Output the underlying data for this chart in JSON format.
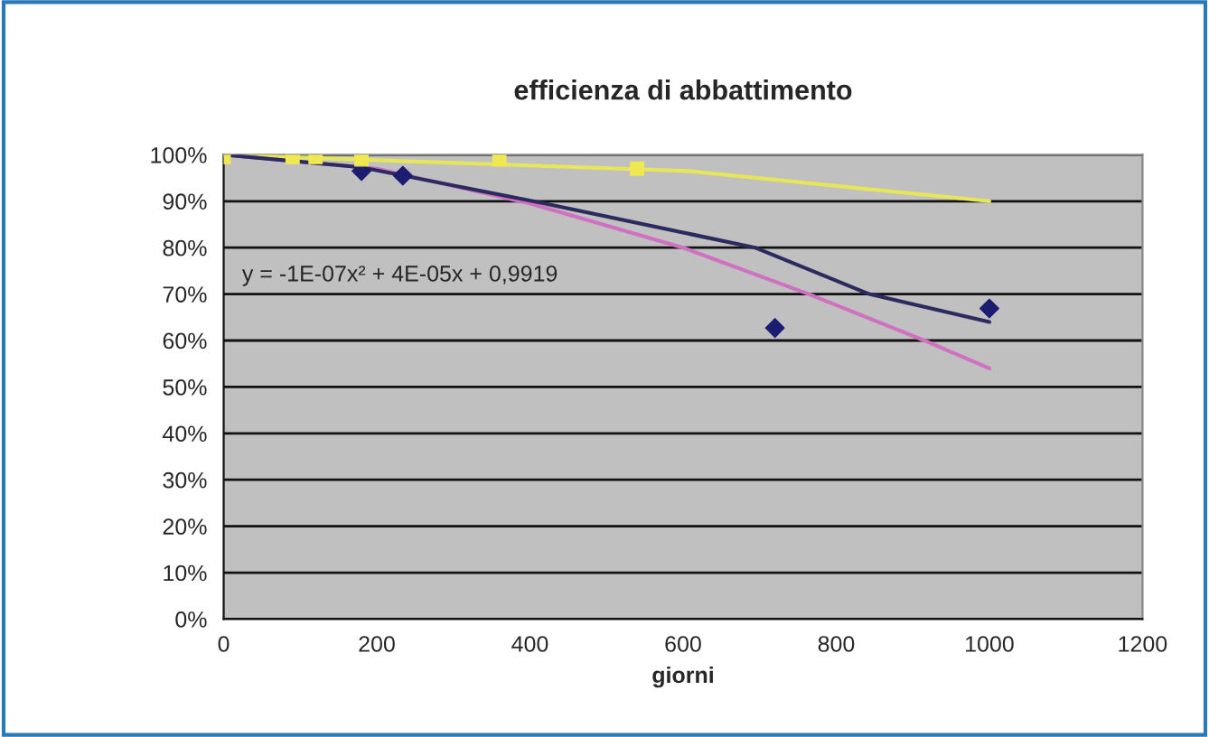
{
  "chart_data": {
    "type": "line",
    "title": "efficienza di abbattimento",
    "xlabel": "giorni",
    "xlim": [
      0,
      1200
    ],
    "xticks": [
      0,
      200,
      400,
      600,
      800,
      1000,
      1200
    ],
    "ylim": [
      0,
      100
    ],
    "yticks": [
      {
        "value": 0,
        "label": "0%"
      },
      {
        "value": 10,
        "label": "10%"
      },
      {
        "value": 20,
        "label": "20%"
      },
      {
        "value": 30,
        "label": "30%"
      },
      {
        "value": 40,
        "label": "40%"
      },
      {
        "value": 50,
        "label": "50%"
      },
      {
        "value": 60,
        "label": "60%"
      },
      {
        "value": 70,
        "label": "70%"
      },
      {
        "value": 80,
        "label": "80%"
      },
      {
        "value": 90,
        "label": "90%"
      },
      {
        "value": 100,
        "label": "100%"
      }
    ],
    "grid": "y",
    "annotations": [
      "y = -1E-07x² + 4E-05x + 0,9919"
    ],
    "series": [
      {
        "marker": "none",
        "color": "#e6e65a",
        "x": [
          0,
          606,
          1000
        ],
        "values": [
          100,
          96.5,
          90
        ]
      },
      {
        "marker": "none",
        "color": "#d070c0",
        "x": [
          0,
          200,
          400,
          600,
          764,
          921,
          1000
        ],
        "values": [
          100,
          97,
          89.5,
          80,
          70,
          59.6,
          54
        ]
      },
      {
        "marker": "none",
        "color": "#2b2b60",
        "x": [
          0,
          180,
          416,
          694,
          843,
          1000
        ],
        "values": [
          100,
          97.3,
          89.6,
          80,
          70,
          64
        ]
      },
      {
        "type": "scatter",
        "marker": "diamond",
        "color": "#1c1c70",
        "x": [
          180,
          234,
          720,
          1000
        ],
        "values": [
          96.5,
          95.5,
          62.7,
          66.9
        ]
      },
      {
        "type": "scatter",
        "marker": "square",
        "color": "#f0e850",
        "x": [
          0,
          90,
          120,
          180,
          360,
          540
        ],
        "values": [
          99.5,
          99.5,
          99.5,
          99,
          99,
          97
        ]
      }
    ]
  }
}
